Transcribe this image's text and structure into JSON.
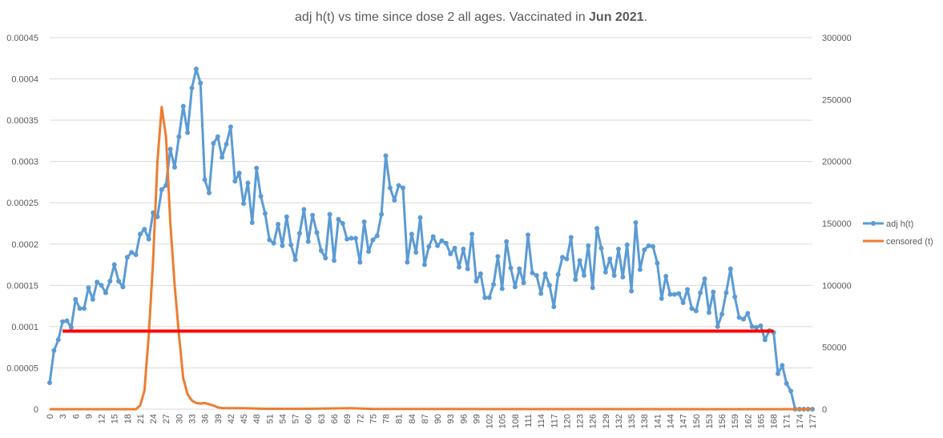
{
  "chart_data": {
    "type": "line",
    "title_prefix": "adj h(t) vs time since dose 2 all ages. Vaccinated in ",
    "title_bold": "Jun 2021",
    "title_suffix": ".",
    "grid": true,
    "legend_position": "right",
    "x_range": [
      0,
      177
    ],
    "x_tick_step": 3,
    "x_tick_labels": [
      "0",
      "3",
      "6",
      "9",
      "12",
      "15",
      "18",
      "21",
      "24",
      "27",
      "30",
      "33",
      "36",
      "39",
      "42",
      "45",
      "48",
      "51",
      "54",
      "57",
      "60",
      "63",
      "66",
      "69",
      "72",
      "75",
      "78",
      "81",
      "84",
      "87",
      "90",
      "93",
      "96",
      "99",
      "102",
      "105",
      "108",
      "111",
      "114",
      "117",
      "120",
      "123",
      "126",
      "129",
      "132",
      "135",
      "138",
      "141",
      "144",
      "147",
      "150",
      "153",
      "156",
      "159",
      "162",
      "165",
      "168",
      "171",
      "174",
      "177"
    ],
    "y_left": {
      "range": [
        0,
        0.00045
      ],
      "ticks": [
        "0",
        "0.00005",
        "0.0001",
        "0.00015",
        "0.0002",
        "0.00025",
        "0.0003",
        "0.00035",
        "0.0004",
        "0.00045"
      ]
    },
    "y_right": {
      "range": [
        0,
        300000
      ],
      "ticks": [
        "0",
        "50000",
        "100000",
        "150000",
        "200000",
        "250000",
        "300000"
      ]
    },
    "series": [
      {
        "name": "adj h(t)",
        "color": "#5B9BD5",
        "axis": "left",
        "marker": true,
        "values": [
          3.2e-05,
          7.1e-05,
          8.4e-05,
          0.000106,
          0.000107,
          9.9e-05,
          0.000133,
          0.000122,
          0.000122,
          0.000147,
          0.000133,
          0.000154,
          0.00015,
          0.000141,
          0.000155,
          0.000175,
          0.000155,
          0.000148,
          0.000184,
          0.00019,
          0.000187,
          0.000212,
          0.000218,
          0.000206,
          0.000238,
          0.000233,
          0.000266,
          0.000271,
          0.000315,
          0.000293,
          0.00033,
          0.000367,
          0.000335,
          0.000389,
          0.000412,
          0.000395,
          0.000278,
          0.000262,
          0.000322,
          0.00033,
          0.000305,
          0.000321,
          0.000342,
          0.000276,
          0.000286,
          0.000249,
          0.000274,
          0.000226,
          0.000292,
          0.000258,
          0.000237,
          0.000205,
          0.000201,
          0.000224,
          0.000198,
          0.000233,
          0.000199,
          0.000181,
          0.000213,
          0.000242,
          0.000203,
          0.000235,
          0.000214,
          0.000192,
          0.000183,
          0.000236,
          0.00018,
          0.00023,
          0.000225,
          0.000206,
          0.000207,
          0.000207,
          0.000178,
          0.000227,
          0.000191,
          0.000205,
          0.00021,
          0.000236,
          0.000307,
          0.000268,
          0.000253,
          0.000271,
          0.000268,
          0.000178,
          0.000212,
          0.00019,
          0.000232,
          0.000175,
          0.000197,
          0.000209,
          0.000198,
          0.000204,
          0.000201,
          0.000188,
          0.000195,
          0.000172,
          0.000194,
          0.00017,
          0.000212,
          0.000155,
          0.000164,
          0.000135,
          0.000135,
          0.000151,
          0.000185,
          0.000146,
          0.000203,
          0.000171,
          0.000148,
          0.00017,
          0.000153,
          0.000211,
          0.000165,
          0.000162,
          0.00014,
          0.000164,
          0.00015,
          0.000124,
          0.000163,
          0.000184,
          0.000182,
          0.000208,
          0.000157,
          0.00018,
          0.000162,
          0.000198,
          0.000147,
          0.000219,
          0.000195,
          0.000166,
          0.000182,
          0.000162,
          0.000194,
          0.00016,
          0.000199,
          0.000143,
          0.000226,
          0.000169,
          0.000193,
          0.000198,
          0.000197,
          0.000177,
          0.000134,
          0.000161,
          0.000139,
          0.000139,
          0.00014,
          0.000129,
          0.000145,
          0.000122,
          0.000119,
          0.000141,
          0.000158,
          0.000117,
          0.000142,
          0.0001,
          0.000115,
          0.000141,
          0.00017,
          0.000136,
          0.000111,
          0.000109,
          0.000116,
          0.0001,
          9.9e-05,
          0.000101,
          8.4e-05,
          9.5e-05,
          9.3e-05,
          4.3e-05,
          5.3e-05,
          3.1e-05,
          2.2e-05,
          0,
          0,
          0,
          0,
          0
        ]
      },
      {
        "name": "censored (t)",
        "color": "#ED7D31",
        "axis": "right",
        "marker": false,
        "points": [
          [
            0,
            0
          ],
          [
            20,
            0
          ],
          [
            21,
            3000
          ],
          [
            22,
            15000
          ],
          [
            23,
            60000
          ],
          [
            24,
            120000
          ],
          [
            25,
            200000
          ],
          [
            26,
            244000
          ],
          [
            27,
            220000
          ],
          [
            28,
            150000
          ],
          [
            29,
            100000
          ],
          [
            30,
            60000
          ],
          [
            31,
            25000
          ],
          [
            32,
            12000
          ],
          [
            33,
            7000
          ],
          [
            34,
            5000
          ],
          [
            35,
            4500
          ],
          [
            36,
            5000
          ],
          [
            37,
            4000
          ],
          [
            38,
            3000
          ],
          [
            39,
            1500
          ],
          [
            40,
            900
          ],
          [
            45,
            800
          ],
          [
            48,
            500
          ],
          [
            50,
            300
          ],
          [
            60,
            300
          ],
          [
            70,
            800
          ],
          [
            75,
            200
          ],
          [
            80,
            100
          ],
          [
            177,
            0
          ]
        ]
      }
    ],
    "reference_line": {
      "color": "#FF0000",
      "x_range": [
        3,
        168
      ],
      "y_value": 9.45e-05
    }
  }
}
